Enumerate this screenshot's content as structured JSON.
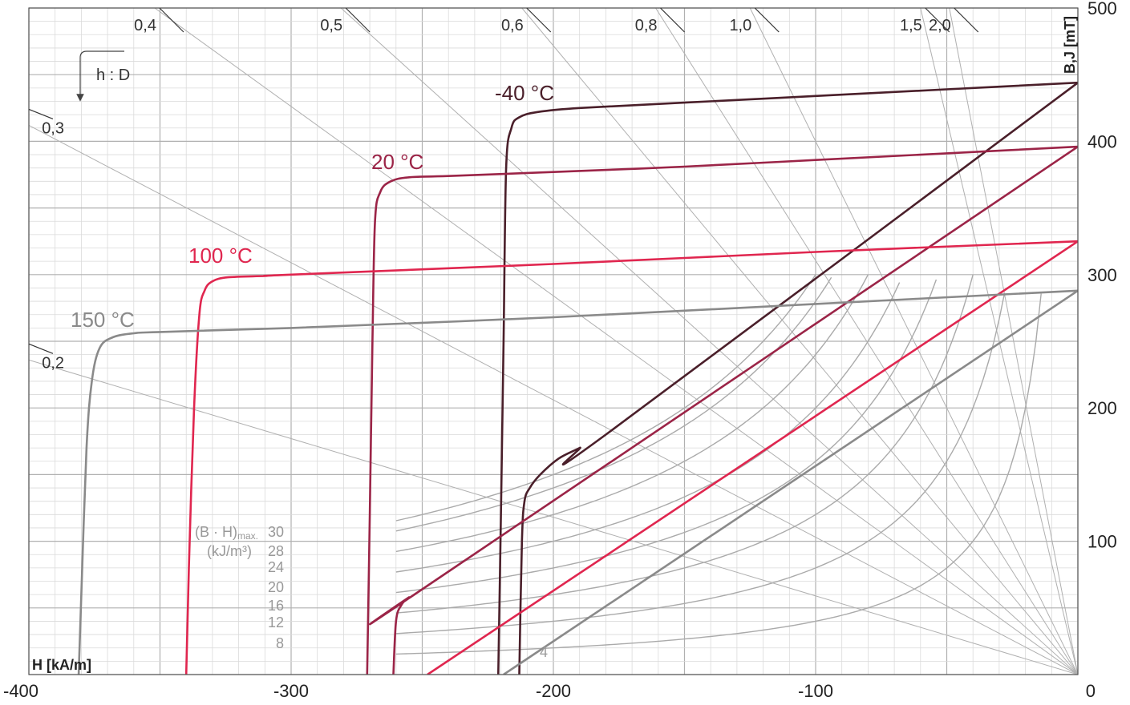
{
  "chart_data": {
    "type": "line",
    "title": "",
    "xlabel": "H [kA/m]",
    "ylabel": "B,J [mT]",
    "xlim": [
      -400,
      0
    ],
    "ylim": [
      0,
      500
    ],
    "grid": true,
    "x_ticks": [
      {
        "value": -400,
        "label": "-400"
      },
      {
        "value": -300,
        "label": "-300"
      },
      {
        "value": -200,
        "label": "-200"
      },
      {
        "value": -100,
        "label": "-100"
      },
      {
        "value": 0,
        "label": "0"
      }
    ],
    "y_ticks": [
      {
        "value": 100,
        "label": "100"
      },
      {
        "value": 200,
        "label": "200"
      },
      {
        "value": 300,
        "label": "300"
      },
      {
        "value": 400,
        "label": "400"
      },
      {
        "value": 500,
        "label": "500"
      }
    ],
    "hd_lines": [
      {
        "label": "0,4",
        "x": -352,
        "y": 500
      },
      {
        "label": "0,5",
        "x": -281,
        "y": 500
      },
      {
        "label": "0,6",
        "x": -212,
        "y": 500
      },
      {
        "label": "0,8",
        "x": -161,
        "y": 500
      },
      {
        "label": "1,0",
        "x": -125,
        "y": 500
      },
      {
        "label": "1,5",
        "x": -60,
        "y": 500
      },
      {
        "label": "2,0",
        "x": -49,
        "y": 500
      },
      {
        "label": "0,3",
        "x": -400,
        "y": 412
      },
      {
        "label": "0,2",
        "x": -400,
        "y": 236
      }
    ],
    "hd_note": "h : D",
    "temperature_curves": [
      {
        "name": "-40 °C",
        "color": "#4a1f2a",
        "J_points": [
          [
            -221,
            0
          ],
          [
            -220,
            120
          ],
          [
            -219,
            250
          ],
          [
            -218,
            380
          ],
          [
            -216,
            410
          ],
          [
            -213,
            418
          ],
          [
            -206,
            422
          ],
          [
            -190,
            425
          ],
          [
            -150,
            429
          ],
          [
            -100,
            434
          ],
          [
            -50,
            439
          ],
          [
            0,
            444
          ]
        ],
        "B_points": [
          [
            -213,
            0
          ],
          [
            -212,
            100
          ],
          [
            -211,
            130
          ],
          [
            -209,
            140
          ],
          [
            -205,
            150
          ],
          [
            -198,
            162
          ],
          [
            -190,
            170
          ],
          [
            -180,
            180
          ],
          [
            0,
            444
          ]
        ]
      },
      {
        "name": "20 °C",
        "color": "#9b2447",
        "J_points": [
          [
            -271,
            0
          ],
          [
            -270,
            120
          ],
          [
            -269,
            250
          ],
          [
            -268,
            340
          ],
          [
            -266,
            362
          ],
          [
            -262,
            370
          ],
          [
            -255,
            373
          ],
          [
            -240,
            374
          ],
          [
            -200,
            377
          ],
          [
            -150,
            381
          ],
          [
            -100,
            386
          ],
          [
            -50,
            391
          ],
          [
            0,
            396
          ]
        ],
        "B_points": [
          [
            -261,
            0
          ],
          [
            -260,
            40
          ],
          [
            -258,
            52
          ],
          [
            -255,
            58
          ],
          [
            -250,
            64
          ],
          [
            0,
            396
          ]
        ]
      },
      {
        "name": "100 °C",
        "color": "#e0264f",
        "J_points": [
          [
            -340,
            0
          ],
          [
            -339,
            80
          ],
          [
            -337,
            200
          ],
          [
            -335,
            270
          ],
          [
            -333,
            288
          ],
          [
            -330,
            295
          ],
          [
            -324,
            298
          ],
          [
            -310,
            299
          ],
          [
            -300,
            300
          ],
          [
            -200,
            308
          ],
          [
            -100,
            317
          ],
          [
            0,
            325
          ]
        ],
        "B_points": [
          [
            -248,
            0
          ],
          [
            0,
            325
          ]
        ]
      },
      {
        "name": "150 °C",
        "color": "#8a8a8a",
        "J_points": [
          [
            -381,
            0
          ],
          [
            -380,
            60
          ],
          [
            -378,
            170
          ],
          [
            -376,
            220
          ],
          [
            -373,
            245
          ],
          [
            -368,
            253
          ],
          [
            -360,
            256
          ],
          [
            -350,
            257
          ],
          [
            -300,
            260
          ],
          [
            -200,
            268
          ],
          [
            -100,
            278
          ],
          [
            0,
            288
          ]
        ],
        "B_points": [
          [
            -219,
            0
          ],
          [
            0,
            288
          ]
        ]
      }
    ],
    "bh_max": {
      "title": "(B · H)",
      "title_sub": "max.",
      "unit": "(kJ/m³)",
      "color": "#aaaaaa",
      "curves": [
        {
          "label": "4",
          "value": 4
        },
        {
          "label": "8",
          "value": 8
        },
        {
          "label": "12",
          "value": 12
        },
        {
          "label": "16",
          "value": 16
        },
        {
          "label": "20",
          "value": 20
        },
        {
          "label": "24",
          "value": 24
        },
        {
          "label": "28",
          "value": 28
        },
        {
          "label": "30",
          "value": 30
        }
      ]
    }
  }
}
